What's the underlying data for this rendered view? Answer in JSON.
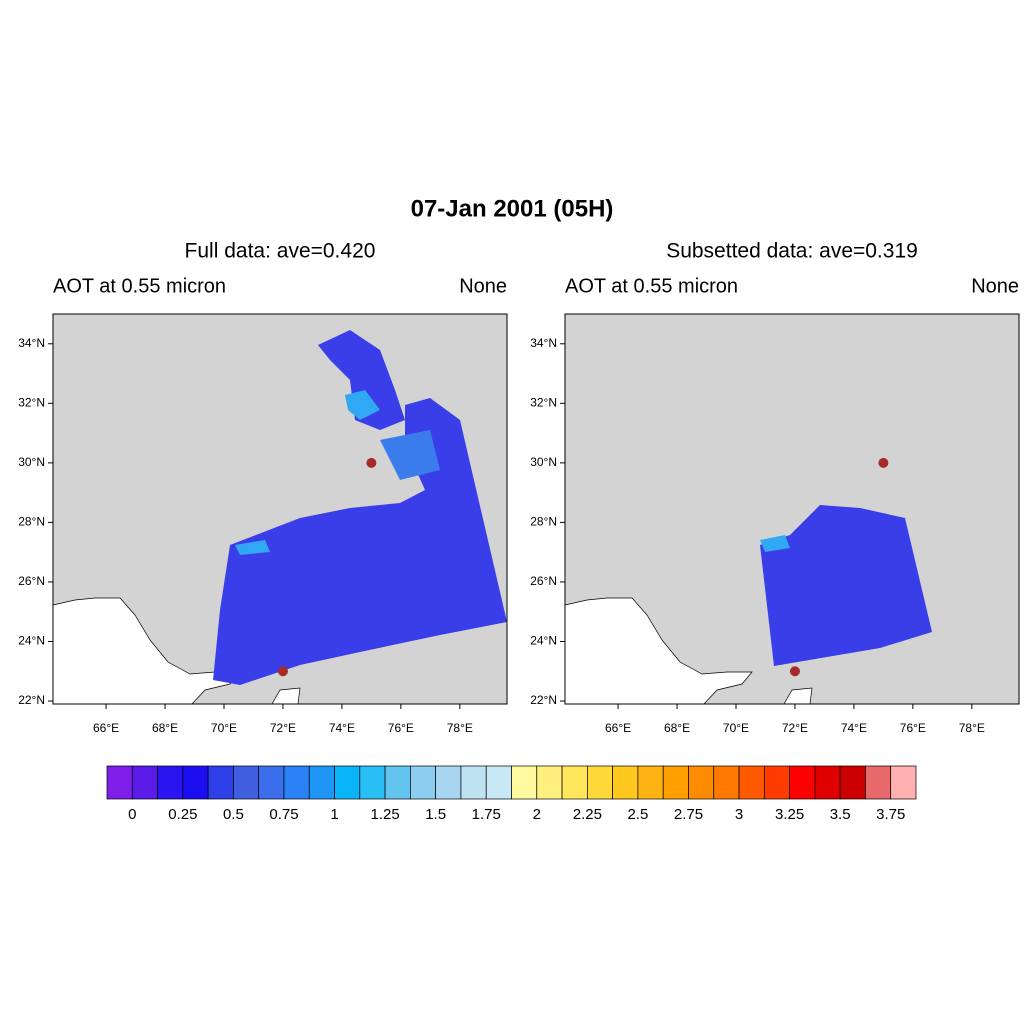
{
  "title": "07-Jan 2001 (05H)",
  "panels": [
    {
      "title": "Full data: ave=0.420",
      "left_label": "AOT at 0.55 micron",
      "right_label": "None",
      "xlim": [
        64.2,
        79.6
      ],
      "ylim": [
        21.9,
        35
      ],
      "xticks": [
        {
          "value": 66,
          "label": "66°E"
        },
        {
          "value": 68,
          "label": "68°E"
        },
        {
          "value": 70,
          "label": "70°E"
        },
        {
          "value": 72,
          "label": "72°E"
        },
        {
          "value": 74,
          "label": "74°E"
        },
        {
          "value": 76,
          "label": "76°E"
        },
        {
          "value": 78,
          "label": "78°E"
        }
      ],
      "yticks": [
        {
          "value": 22,
          "label": "22°N"
        },
        {
          "value": 24,
          "label": "24°N"
        },
        {
          "value": 26,
          "label": "26°N"
        },
        {
          "value": 28,
          "label": "28°N"
        },
        {
          "value": 30,
          "label": "30°N"
        },
        {
          "value": 32,
          "label": "32°N"
        },
        {
          "value": 34,
          "label": "34°N"
        }
      ],
      "points": {
        "lon": [
          75,
          72
        ],
        "lat": [
          30,
          23
        ]
      },
      "point_color": "#a52a2a"
    },
    {
      "title": "Subsetted data: ave=0.319",
      "left_label": "AOT at 0.55 micron",
      "right_label": "None",
      "xlim": [
        64.2,
        79.6
      ],
      "ylim": [
        21.9,
        35
      ],
      "xticks": [
        {
          "value": 66,
          "label": "66°E"
        },
        {
          "value": 68,
          "label": "68°E"
        },
        {
          "value": 70,
          "label": "70°E"
        },
        {
          "value": 72,
          "label": "72°E"
        },
        {
          "value": 74,
          "label": "74°E"
        },
        {
          "value": 76,
          "label": "76°E"
        },
        {
          "value": 78,
          "label": "78°E"
        }
      ],
      "yticks": [
        {
          "value": 22,
          "label": "22°N"
        },
        {
          "value": 24,
          "label": "24°N"
        },
        {
          "value": 26,
          "label": "26°N"
        },
        {
          "value": 28,
          "label": "28°N"
        },
        {
          "value": 30,
          "label": "30°N"
        },
        {
          "value": 32,
          "label": "32°N"
        },
        {
          "value": 34,
          "label": "34°N"
        }
      ],
      "points": {
        "lon": [
          75,
          72
        ],
        "lat": [
          30,
          23
        ]
      },
      "point_color": "#a52a2a"
    }
  ],
  "colorbar": {
    "labels": [
      0,
      0.25,
      0.5,
      0.75,
      1,
      1.25,
      1.5,
      1.75,
      2,
      2.25,
      2.5,
      2.75,
      3,
      3.25,
      3.5,
      3.75
    ],
    "colors": [
      "#7e1ee8",
      "#5a1ae8",
      "#2a14f0",
      "#1a0ef0",
      "#2f3fe8",
      "#3f5fe0",
      "#3a6eec",
      "#2a82f4",
      "#1e96f6",
      "#0ab4f8",
      "#2ac0f6",
      "#64c4f0",
      "#8ccdf0",
      "#a8d6f0",
      "#bee2f2",
      "#c8e8f6",
      "#fffaa0",
      "#fff080",
      "#ffe65a",
      "#ffd83a",
      "#ffc81e",
      "#ffb414",
      "#ffa000",
      "#ff8c00",
      "#ff7800",
      "#ff5a00",
      "#ff3c00",
      "#ff0000",
      "#e00000",
      "#cc0000",
      "#e8696b",
      "#ffb0b0"
    ]
  }
}
